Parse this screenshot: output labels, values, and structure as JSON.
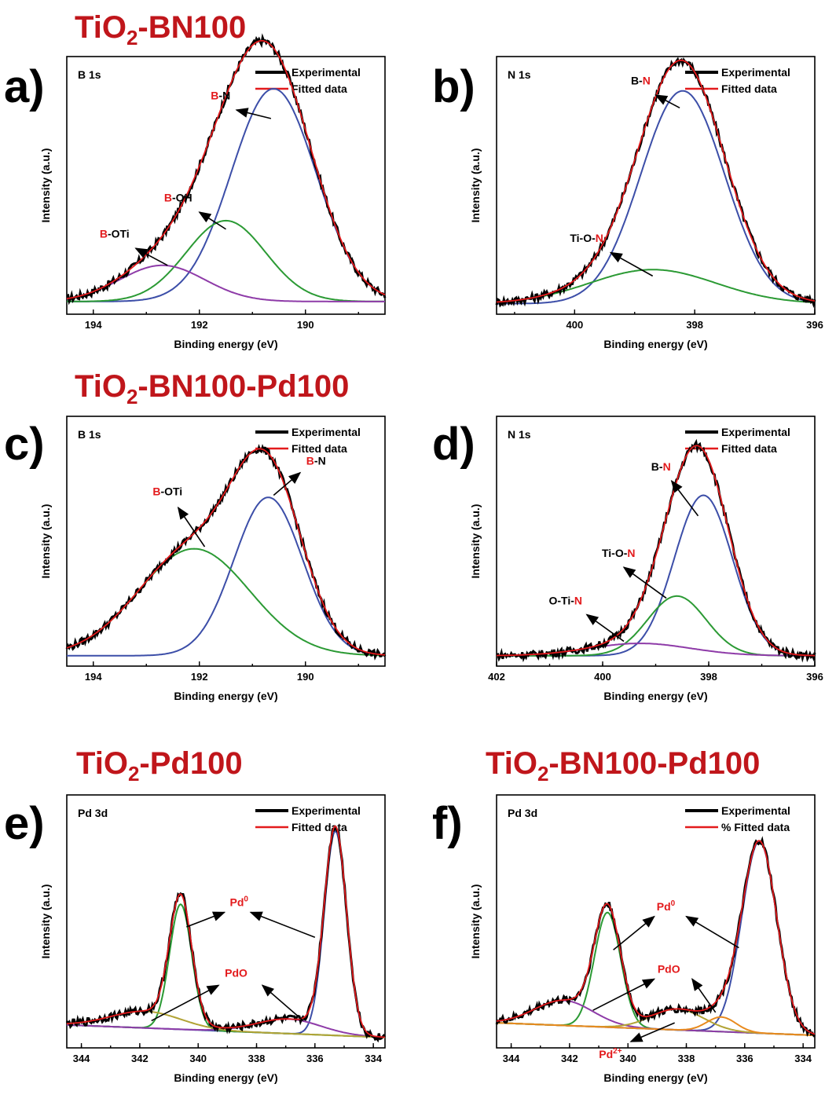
{
  "sample_titles": [
    {
      "id": "top",
      "base": "TiO",
      "sub": "2",
      "rest": "-BN100"
    },
    {
      "id": "mid",
      "base": "TiO",
      "sub": "2",
      "rest": "-BN100-Pd100"
    },
    {
      "id": "bottom-left",
      "base": "TiO",
      "sub": "2",
      "rest": "-Pd100"
    },
    {
      "id": "bottom-right",
      "base": "TiO",
      "sub": "2",
      "rest": "-BN100-Pd100"
    }
  ],
  "colors": {
    "experimental": "#000000",
    "fitted": "#e31a1c",
    "blue": "#3c4ea8",
    "green": "#2b9a34",
    "purple": "#8e3ba8",
    "olive": "#b2a335",
    "orange": "#e88a1e",
    "title_red": "#c0161b"
  },
  "chart_data": [
    {
      "panel": "a)",
      "type": "line",
      "core_level": "B 1s",
      "xlabel": "Binding energy (eV)",
      "ylabel": "Intensity (a.u.)",
      "xlim": [
        194.5,
        188.5
      ],
      "xticks": [
        194,
        192,
        190
      ],
      "ylim": [
        0,
        1.1
      ],
      "legend": [
        "Experimental",
        "Fitted data"
      ],
      "legend_position": "top-right",
      "background": 0.03,
      "components": [
        {
          "center": 190.6,
          "amplitude": 1.0,
          "width": 0.8,
          "color": "blue"
        },
        {
          "center": 191.5,
          "amplitude": 0.38,
          "width": 0.75,
          "color": "green"
        },
        {
          "center": 192.7,
          "amplitude": 0.17,
          "width": 0.8,
          "color": "purple"
        }
      ],
      "annotations": [
        {
          "parts": [
            {
              "t": "B",
              "red": true
            },
            {
              "t": "-N",
              "red": false
            }
          ],
          "text_at": [
            191.6,
            0.98
          ],
          "arrow_from": [
            191.3,
            0.93
          ],
          "arrow_to": [
            190.65,
            0.89
          ]
        },
        {
          "parts": [
            {
              "t": "B",
              "red": true
            },
            {
              "t": "-OH",
              "red": false
            }
          ],
          "text_at": [
            192.4,
            0.5
          ],
          "arrow_from": [
            192.0,
            0.45
          ],
          "arrow_to": [
            191.5,
            0.37
          ]
        },
        {
          "parts": [
            {
              "t": "B",
              "red": true
            },
            {
              "t": "-OTi",
              "red": false
            }
          ],
          "text_at": [
            193.6,
            0.33
          ],
          "arrow_from": [
            193.2,
            0.28
          ],
          "arrow_to": [
            192.6,
            0.2
          ]
        }
      ]
    },
    {
      "panel": "b)",
      "type": "line",
      "core_level": "N 1s",
      "xlabel": "Binding energy (eV)",
      "ylabel": "Intensity (a.u.)",
      "xlim": [
        401.3,
        396
      ],
      "xticks": [
        400,
        398,
        396
      ],
      "ylim": [
        0,
        1.1
      ],
      "legend": [
        "Experimental",
        "Fitted data"
      ],
      "legend_position": "top-right",
      "background": 0.02,
      "components": [
        {
          "center": 398.2,
          "amplitude": 1.0,
          "width": 0.7,
          "color": "blue"
        },
        {
          "center": 398.7,
          "amplitude": 0.16,
          "width": 1.05,
          "color": "green"
        }
      ],
      "annotations": [
        {
          "parts": [
            {
              "t": "B-",
              "red": false
            },
            {
              "t": "N",
              "red": true
            }
          ],
          "text_at": [
            398.9,
            1.05
          ],
          "arrow_from": [
            398.65,
            1.0
          ],
          "arrow_to": [
            398.25,
            0.94
          ]
        },
        {
          "parts": [
            {
              "t": "Ti-O-",
              "red": false
            },
            {
              "t": "N",
              "red": true
            }
          ],
          "text_at": [
            399.8,
            0.31
          ],
          "arrow_from": [
            399.4,
            0.26
          ],
          "arrow_to": [
            398.7,
            0.15
          ]
        }
      ]
    },
    {
      "panel": "c)",
      "type": "line",
      "core_level": "B 1s",
      "xlabel": "Binding energy (eV)",
      "ylabel": "Intensity (a.u.)",
      "xlim": [
        194.5,
        188.5
      ],
      "xticks": [
        194,
        192,
        190
      ],
      "ylim": [
        0,
        1.1
      ],
      "legend": [
        "Experimental",
        "Fitted data"
      ],
      "legend_position": "top-right",
      "background": 0.02,
      "components": [
        {
          "center": 190.7,
          "amplitude": 0.77,
          "width": 0.65,
          "color": "blue"
        },
        {
          "center": 192.1,
          "amplitude": 0.52,
          "width": 1.05,
          "color": "green"
        }
      ],
      "annotations": [
        {
          "parts": [
            {
              "t": "B",
              "red": true
            },
            {
              "t": "-N",
              "red": false
            }
          ],
          "text_at": [
            189.8,
            0.95
          ],
          "arrow_from": [
            190.1,
            0.91
          ],
          "arrow_to": [
            190.6,
            0.8
          ]
        },
        {
          "parts": [
            {
              "t": "B",
              "red": true
            },
            {
              "t": "-OTi",
              "red": false
            }
          ],
          "text_at": [
            192.6,
            0.8
          ],
          "arrow_from": [
            192.4,
            0.74
          ],
          "arrow_to": [
            191.9,
            0.55
          ]
        }
      ]
    },
    {
      "panel": "d)",
      "type": "line",
      "core_level": "N 1s",
      "xlabel": "Binding energy (eV)",
      "ylabel": "Intensity (a.u.)",
      "xlim": [
        402,
        396
      ],
      "xticks": [
        402,
        400,
        398,
        396
      ],
      "ylim": [
        0,
        1.1
      ],
      "legend": [
        "Experimental",
        "Fitted data"
      ],
      "legend_position": "top-right",
      "background": 0.02,
      "components": [
        {
          "center": 398.1,
          "amplitude": 0.78,
          "width": 0.55,
          "color": "blue"
        },
        {
          "center": 398.6,
          "amplitude": 0.29,
          "width": 0.55,
          "color": "green"
        },
        {
          "center": 399.3,
          "amplitude": 0.06,
          "width": 0.95,
          "color": "purple"
        }
      ],
      "annotations": [
        {
          "parts": [
            {
              "t": "B-",
              "red": false
            },
            {
              "t": "N",
              "red": true
            }
          ],
          "text_at": [
            398.9,
            0.92
          ],
          "arrow_from": [
            398.7,
            0.87
          ],
          "arrow_to": [
            398.2,
            0.7
          ]
        },
        {
          "parts": [
            {
              "t": "Ti-O-",
              "red": false
            },
            {
              "t": "N",
              "red": true
            }
          ],
          "text_at": [
            399.7,
            0.5
          ],
          "arrow_from": [
            399.6,
            0.45
          ],
          "arrow_to": [
            398.8,
            0.3
          ]
        },
        {
          "parts": [
            {
              "t": "O-Ti-",
              "red": false
            },
            {
              "t": "N",
              "red": true
            }
          ],
          "text_at": [
            400.7,
            0.27
          ],
          "arrow_from": [
            400.3,
            0.22
          ],
          "arrow_to": [
            399.6,
            0.09
          ]
        }
      ]
    },
    {
      "panel": "e)",
      "type": "line",
      "core_level": "Pd 3d",
      "xlabel": "Binding energy (eV)",
      "ylabel": "Intensity (a.u.)",
      "xlim": [
        344.5,
        333.6
      ],
      "xticks": [
        344,
        342,
        340,
        338,
        336,
        334
      ],
      "ylim": [
        0,
        1.1
      ],
      "legend": [
        "Experimental",
        "Fitted data"
      ],
      "legend_position": "top-right",
      "background": 0.02,
      "components": [
        {
          "center": 335.3,
          "amplitude": 0.98,
          "width": 0.38,
          "color": "blue"
        },
        {
          "center": 340.6,
          "amplitude": 0.6,
          "width": 0.38,
          "color": "green"
        },
        {
          "center": 336.9,
          "amplitude": 0.07,
          "width": 1.1,
          "color": "purple"
        },
        {
          "center": 341.8,
          "amplitude": 0.08,
          "width": 1.2,
          "color": "olive"
        }
      ],
      "annotations": [
        {
          "parts": [
            {
              "t": "Pd",
              "red": true
            },
            {
              "t": "0",
              "red": true,
              "sup": true
            }
          ],
          "text_at": [
            338.6,
            0.65
          ],
          "arrow_from": [
            339.1,
            0.62
          ],
          "arrow_to": [
            340.4,
            0.55
          ]
        },
        {
          "parts": [],
          "text_at": [
            338.0,
            0.65
          ],
          "arrow_from": [
            338.2,
            0.62
          ],
          "arrow_to": [
            336.0,
            0.5
          ]
        },
        {
          "parts": [
            {
              "t": "PdO",
              "red": true
            }
          ],
          "text_at": [
            338.7,
            0.31
          ],
          "arrow_from": [
            339.3,
            0.27
          ],
          "arrow_to": [
            341.6,
            0.1
          ]
        },
        {
          "parts": [],
          "text_at": [
            338.0,
            0.31
          ],
          "arrow_from": [
            337.8,
            0.27
          ],
          "arrow_to": [
            336.4,
            0.1
          ]
        }
      ]
    },
    {
      "panel": "f)",
      "type": "line",
      "core_level": "Pd 3d",
      "xlabel": "Binding energy (eV)",
      "ylabel": "Intensity (a.u.)",
      "xlim": [
        344.5,
        333.6
      ],
      "xticks": [
        344,
        342,
        340,
        338,
        336,
        334
      ],
      "ylim": [
        0,
        1.1
      ],
      "legend": [
        "Experimental",
        "% Fitted data"
      ],
      "legend_position": "top-right",
      "background": 0.03,
      "components": [
        {
          "center": 335.5,
          "amplitude": 0.92,
          "width": 0.6,
          "color": "blue"
        },
        {
          "center": 340.7,
          "amplitude": 0.55,
          "width": 0.45,
          "color": "green"
        },
        {
          "center": 342.2,
          "amplitude": 0.12,
          "width": 1.0,
          "color": "purple"
        },
        {
          "center": 338.3,
          "amplitude": 0.1,
          "width": 0.9,
          "color": "olive"
        },
        {
          "center": 336.8,
          "amplitude": 0.07,
          "width": 0.5,
          "color": "orange"
        }
      ],
      "annotations": [
        {
          "parts": [
            {
              "t": "Pd",
              "red": true
            },
            {
              "t": "0",
              "red": true,
              "sup": true
            }
          ],
          "text_at": [
            338.7,
            0.63
          ],
          "arrow_from": [
            339.1,
            0.6
          ],
          "arrow_to": [
            340.5,
            0.44
          ]
        },
        {
          "parts": [],
          "text_at": [
            338.0,
            0.63
          ],
          "arrow_from": [
            338.0,
            0.6
          ],
          "arrow_to": [
            336.2,
            0.45
          ]
        },
        {
          "parts": [
            {
              "t": "PdO",
              "red": true
            }
          ],
          "text_at": [
            338.6,
            0.33
          ],
          "arrow_from": [
            339.1,
            0.3
          ],
          "arrow_to": [
            341.2,
            0.15
          ]
        },
        {
          "parts": [],
          "text_at": [
            338.0,
            0.33
          ],
          "arrow_from": [
            337.8,
            0.3
          ],
          "arrow_to": [
            337.0,
            0.14
          ]
        },
        {
          "parts": [
            {
              "t": "Pd",
              "red": true
            },
            {
              "t": "2+",
              "red": true,
              "sup": true
            }
          ],
          "text_at": [
            340.6,
            -0.08
          ],
          "arrow_from": [
            339.9,
            0.0
          ],
          "arrow_to": [
            338.4,
            0.09
          ]
        }
      ]
    }
  ]
}
